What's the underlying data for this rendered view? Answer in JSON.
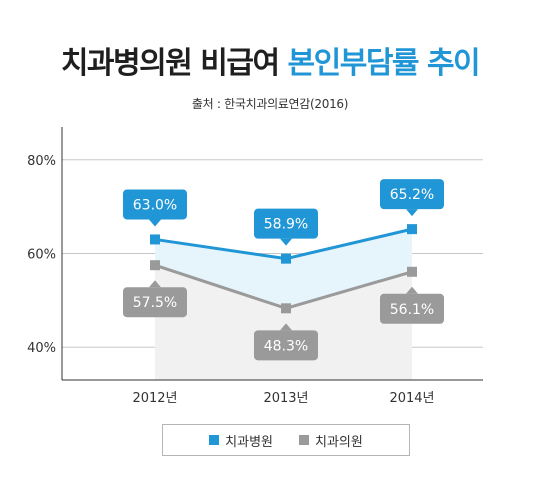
{
  "title": {
    "part1": "치과병의원 비급여",
    "part2": "본인부담률 추이"
  },
  "source": "출처 : 한국치과의료연감(2016)",
  "colors": {
    "hospital": "#2196d6",
    "clinic": "#9a9a9a",
    "hospital_fill": "#e6f4fb",
    "clinic_fill": "#f1f1f1",
    "grid": "#c8c8c8",
    "axis": "#333333"
  },
  "chart_data": {
    "type": "line",
    "title": "치과병의원 비급여 본인부담률 추이",
    "categories": [
      "2012년",
      "2013년",
      "2014년"
    ],
    "series": [
      {
        "name": "치과병원",
        "values": [
          63.0,
          58.9,
          65.2
        ],
        "labels": [
          "63.0%",
          "58.9%",
          "65.2%"
        ]
      },
      {
        "name": "치과의원",
        "values": [
          57.5,
          48.3,
          56.1
        ],
        "labels": [
          "57.5%",
          "48.3%",
          "56.1%"
        ]
      }
    ],
    "y_ticks": [
      {
        "value": 40,
        "label": "40%"
      },
      {
        "value": 60,
        "label": "60%"
      },
      {
        "value": 80,
        "label": "80%"
      }
    ],
    "ylim": [
      33,
      87
    ],
    "grid": true,
    "legend_position": "bottom"
  }
}
